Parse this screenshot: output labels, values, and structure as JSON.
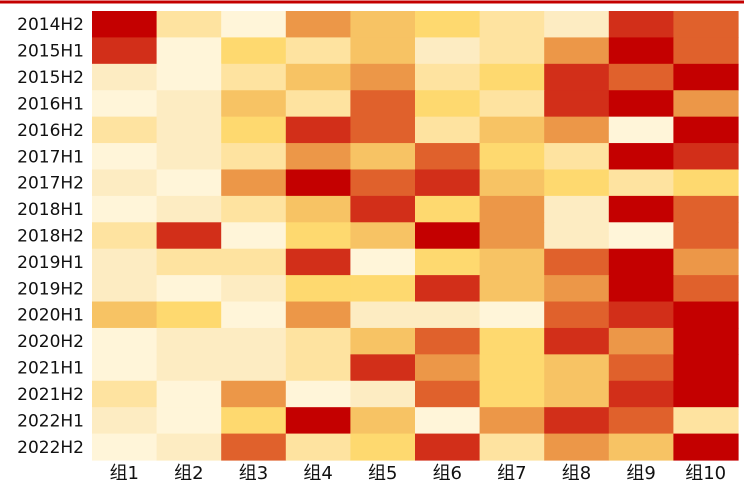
{
  "chart_data": {
    "type": "heatmap",
    "title": "",
    "xlabel": "",
    "ylabel": "",
    "rows": [
      "2014H2",
      "2015H1",
      "2015H2",
      "2016H1",
      "2016H2",
      "2017H1",
      "2017H2",
      "2018H1",
      "2018H2",
      "2019H1",
      "2019H2",
      "2020H1",
      "2020H2",
      "2021H1",
      "2021H2",
      "2022H1",
      "2022H2"
    ],
    "columns": [
      "组1",
      "组2",
      "组3",
      "组4",
      "组5",
      "组6",
      "组7",
      "组8",
      "组9",
      "组10"
    ],
    "color_scale": [
      "#fff5d9",
      "#fdecc2",
      "#fee3a0",
      "#fed96f",
      "#f7c364",
      "#ec9748",
      "#e0612c",
      "#d22f19",
      "#c40000"
    ],
    "values": [
      [
        9,
        3,
        1,
        6,
        5,
        4,
        3,
        2,
        8,
        7
      ],
      [
        8,
        1,
        4,
        3,
        5,
        2,
        3,
        6,
        9,
        7
      ],
      [
        2,
        1,
        3,
        5,
        6,
        3,
        4,
        8,
        7,
        9
      ],
      [
        1,
        2,
        5,
        3,
        7,
        4,
        3,
        8,
        9,
        6
      ],
      [
        3,
        2,
        4,
        8,
        7,
        3,
        5,
        6,
        1,
        9
      ],
      [
        1,
        2,
        3,
        6,
        5,
        7,
        4,
        3,
        9,
        8
      ],
      [
        2,
        1,
        6,
        9,
        7,
        8,
        5,
        4,
        3,
        4
      ],
      [
        1,
        2,
        3,
        5,
        8,
        4,
        6,
        2,
        9,
        7
      ],
      [
        3,
        8,
        1,
        4,
        5,
        9,
        6,
        2,
        1,
        7
      ],
      [
        2,
        3,
        3,
        8,
        1,
        4,
        5,
        7,
        9,
        6
      ],
      [
        2,
        1,
        2,
        4,
        4,
        8,
        5,
        6,
        9,
        7
      ],
      [
        5,
        4,
        1,
        6,
        2,
        2,
        1,
        7,
        8,
        9
      ],
      [
        1,
        2,
        2,
        3,
        5,
        7,
        4,
        8,
        6,
        9
      ],
      [
        1,
        2,
        2,
        3,
        8,
        6,
        4,
        5,
        7,
        9
      ],
      [
        3,
        1,
        6,
        1,
        2,
        7,
        4,
        5,
        8,
        9
      ],
      [
        2,
        1,
        4,
        9,
        5,
        1,
        6,
        8,
        7,
        3
      ],
      [
        1,
        2,
        7,
        3,
        4,
        8,
        3,
        6,
        5,
        9
      ]
    ],
    "grid": false,
    "legend": "none"
  }
}
